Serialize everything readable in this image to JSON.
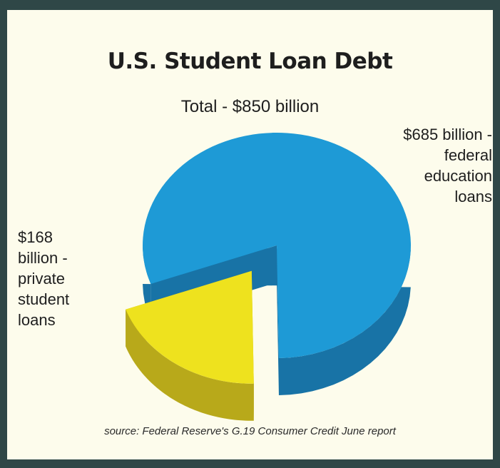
{
  "chart_data": {
    "type": "pie",
    "title": "U.S. Student Loan Debt",
    "subtitle": "Total - $850 billion",
    "slices": [
      {
        "value": 685,
        "label_lines": [
          "$685  billion -",
          "federal",
          "education",
          "loans"
        ],
        "color": "#1e9ad6",
        "side_color": "#1873a6"
      },
      {
        "value": 168,
        "label_lines": [
          "$168",
          "billion -",
          "private",
          "student",
          "loans"
        ],
        "color": "#eee21e",
        "side_color": "#b8a91a"
      }
    ],
    "source": "source: Federal Reserve's G.19 Consumer Credit June report"
  }
}
